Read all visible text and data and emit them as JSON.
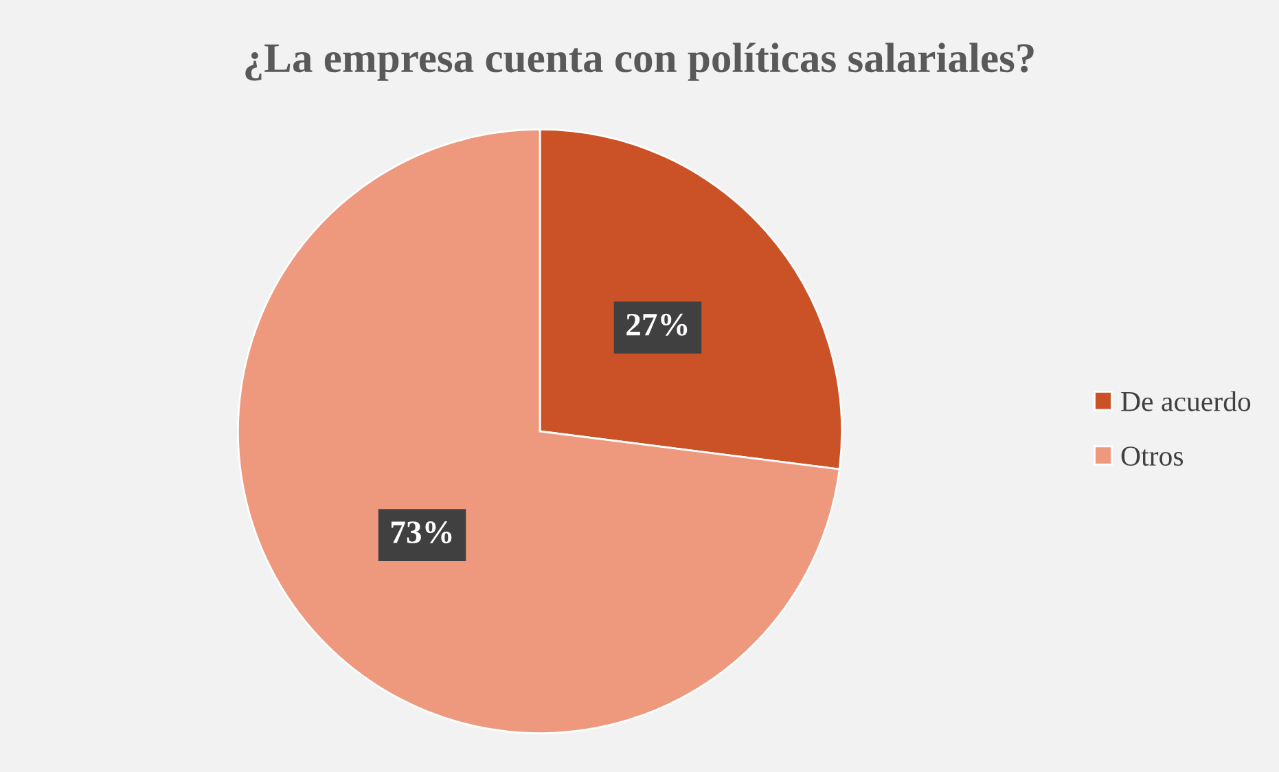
{
  "chart_data": {
    "type": "pie",
    "title": "¿La empresa cuenta con políticas salariales?",
    "categories": [
      "De acuerdo",
      "Otros"
    ],
    "values": [
      27,
      73
    ],
    "value_labels": [
      "27%",
      "73%"
    ],
    "colors": [
      "#cb5227",
      "#ee997e"
    ],
    "legend": "right"
  }
}
